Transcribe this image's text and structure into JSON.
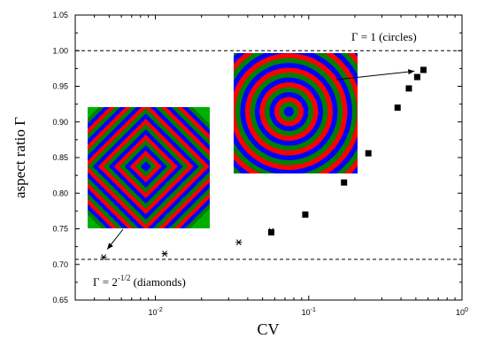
{
  "chart_data": {
    "type": "scatter",
    "xlabel": "CV",
    "ylabel": "aspect  ratio  Γ",
    "xscale": "log",
    "xlim": [
      0.003,
      1.0
    ],
    "ylim": [
      0.65,
      1.05
    ],
    "grid": false,
    "x_tick_labels": [
      {
        "value": 0.01,
        "base": "10",
        "exp": "-2"
      },
      {
        "value": 0.1,
        "base": "10",
        "exp": "-1"
      },
      {
        "value": 1,
        "base": "10",
        "exp": "0"
      }
    ],
    "y_ticks": [
      0.65,
      0.7,
      0.75,
      0.8,
      0.85,
      0.9,
      0.95,
      1.0,
      1.05
    ],
    "y_tick_labels": [
      "0.65",
      "0.70",
      "0.75",
      "0.80",
      "0.85",
      "0.90",
      "0.95",
      "1.00",
      "1.05"
    ],
    "reference_lines": [
      {
        "y": 1.0,
        "style": "dashed",
        "label_base": "Γ = 1 (circles)",
        "label_exp": ""
      },
      {
        "y": 0.7071,
        "style": "dashed",
        "label_base": "Γ = 2",
        "label_exp": "-1/2",
        "label_suffix": " (diamonds)"
      }
    ],
    "series": [
      {
        "marker": "asterisk",
        "x": [
          0.0046,
          0.0115,
          0.035,
          0.057
        ],
        "y": [
          0.71,
          0.715,
          0.731,
          0.747
        ]
      },
      {
        "marker": "square",
        "x": [
          0.057,
          0.095,
          0.17,
          0.245,
          0.38,
          0.45,
          0.51,
          0.56
        ],
        "y": [
          0.745,
          0.77,
          0.815,
          0.856,
          0.92,
          0.947,
          0.963,
          0.973
        ]
      }
    ],
    "insets": [
      {
        "depicts": "diamond pattern",
        "shape": "diamond",
        "center_x": 0.00866,
        "center_y": 0.8375,
        "arrow_to": [
          0.0046,
          0.71
        ]
      },
      {
        "depicts": "circle pattern",
        "shape": "circle",
        "center_x": 0.0743,
        "center_y": 0.9145,
        "arrow_to": [
          0.53,
          0.97
        ]
      }
    ],
    "colors": {
      "ring_cycle": [
        "#008000",
        "#0000ff",
        "#ff0000"
      ],
      "axis": "#000000",
      "marker": "#000000"
    }
  }
}
